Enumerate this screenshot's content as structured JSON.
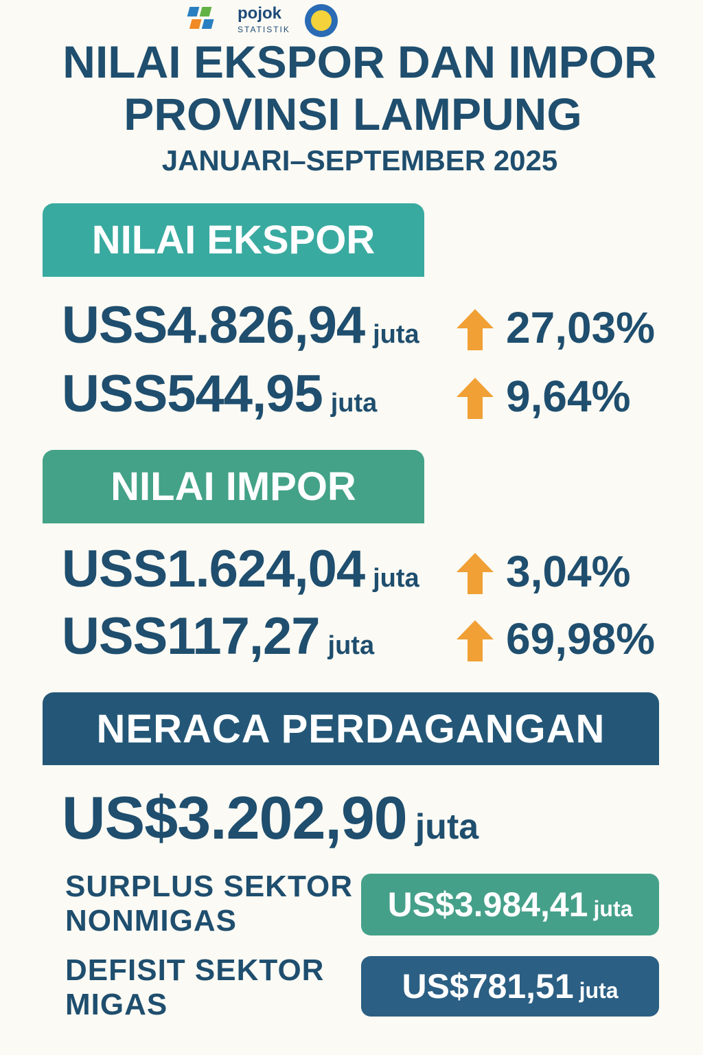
{
  "header": {
    "logo_text": "pojok",
    "logo_subtext": "STATISTIK",
    "title_line1": "NILAI EKSPOR DAN IMPOR",
    "title_line2": "PROVINSI LAMPUNG",
    "subtitle": "JANUARI–SEPTEMBER 2025"
  },
  "ekspor": {
    "heading": "NILAI EKSPOR",
    "rows": [
      {
        "amount": "USS4.826,94",
        "unit": "juta",
        "change": "27,03%"
      },
      {
        "amount": "USS544,95",
        "unit": "juta",
        "change": "9,64%"
      }
    ]
  },
  "impor": {
    "heading": "NILAI IMPOR",
    "rows": [
      {
        "amount": "USS1.624,04",
        "unit": "juta",
        "change": "3,04%"
      },
      {
        "amount": "USS117,27",
        "unit": "juta",
        "change": "69,98%"
      }
    ]
  },
  "neraca": {
    "heading": "NERACA PERDAGANGAN",
    "amount": "US$3.202,90",
    "unit": "juta",
    "items": [
      {
        "label_line1": "SURPLUS SEKTOR",
        "label_line2": "NONMIGAS",
        "amount": "US$3.984,41",
        "unit": "juta"
      },
      {
        "label_line1": "DEFISIT SEKTOR",
        "label_line2": "MIGAS",
        "amount": "US$781,51",
        "unit": "juta"
      }
    ]
  }
}
